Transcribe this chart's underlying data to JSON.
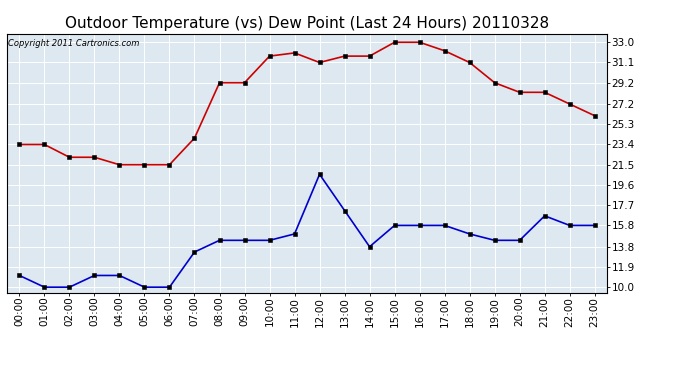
{
  "title": "Outdoor Temperature (vs) Dew Point (Last 24 Hours) 20110328",
  "copyright": "Copyright 2011 Cartronics.com",
  "x_labels": [
    "00:00",
    "01:00",
    "02:00",
    "03:00",
    "04:00",
    "05:00",
    "06:00",
    "07:00",
    "08:00",
    "09:00",
    "10:00",
    "11:00",
    "12:00",
    "13:00",
    "14:00",
    "15:00",
    "16:00",
    "17:00",
    "18:00",
    "19:00",
    "20:00",
    "21:00",
    "22:00",
    "23:00"
  ],
  "temp_data": [
    23.4,
    23.4,
    22.2,
    22.2,
    21.5,
    21.5,
    21.5,
    24.0,
    29.2,
    29.2,
    31.7,
    32.0,
    31.1,
    31.7,
    31.7,
    33.0,
    33.0,
    32.2,
    31.1,
    29.2,
    28.3,
    28.3,
    27.2,
    26.1
  ],
  "dew_data": [
    11.1,
    10.0,
    10.0,
    11.1,
    11.1,
    10.0,
    10.0,
    13.3,
    14.4,
    14.4,
    14.4,
    15.0,
    20.6,
    17.2,
    13.8,
    15.8,
    15.8,
    15.8,
    15.0,
    14.4,
    14.4,
    16.7,
    15.8,
    15.8
  ],
  "temp_color": "#cc0000",
  "dew_color": "#0000cc",
  "fig_bg_color": "#ffffff",
  "plot_bg_color": "#dde8f0",
  "grid_color": "#ffffff",
  "yticks": [
    10.0,
    11.9,
    13.8,
    15.8,
    17.7,
    19.6,
    21.5,
    23.4,
    25.3,
    27.2,
    29.2,
    31.1,
    33.0
  ],
  "ylim": [
    9.5,
    33.8
  ],
  "title_fontsize": 11,
  "label_fontsize": 7.5,
  "copyright_fontsize": 6,
  "marker": "s",
  "marker_size": 2.5,
  "line_width": 1.2
}
